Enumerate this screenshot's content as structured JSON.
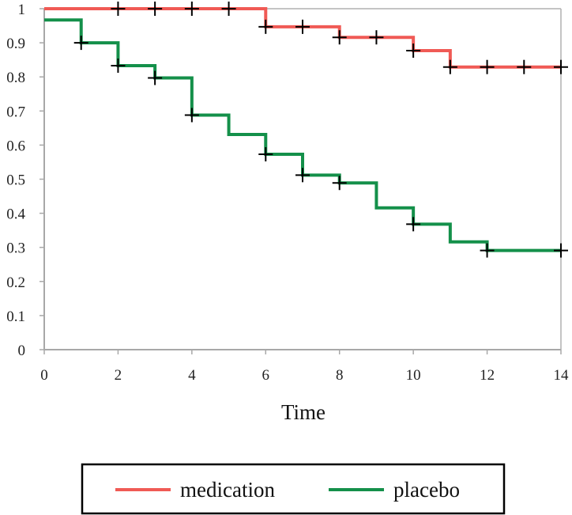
{
  "chart_data": {
    "type": "line",
    "title": "",
    "xlabel": "Time",
    "ylabel": "",
    "xlim": [
      0,
      14
    ],
    "ylim": [
      0,
      1
    ],
    "x_ticks": [
      0,
      2,
      4,
      6,
      8,
      10,
      12,
      14
    ],
    "x_tick_labels": [
      "0",
      "2",
      "4",
      "6",
      "8",
      "10",
      "12",
      "14"
    ],
    "y_ticks": [
      0,
      0.1,
      0.2,
      0.3,
      0.4,
      0.5,
      0.6,
      0.7,
      0.8,
      0.9,
      1
    ],
    "y_tick_labels": [
      "0",
      "0.1",
      "0.2",
      "0.3",
      "0.4",
      "0.5",
      "0.6",
      "0.7",
      "0.8",
      "0.9",
      "1"
    ],
    "legend_position": "bottom",
    "series": [
      {
        "name": "medication",
        "color": "#f05a55",
        "steps": [
          {
            "x": 0,
            "y": 1.0
          },
          {
            "x": 6,
            "y": 0.947
          },
          {
            "x": 8,
            "y": 0.916
          },
          {
            "x": 10,
            "y": 0.877
          },
          {
            "x": 11,
            "y": 0.829
          }
        ],
        "end_x": 14,
        "censored": [
          {
            "x": 2,
            "y": 1.0
          },
          {
            "x": 3,
            "y": 1.0
          },
          {
            "x": 4,
            "y": 1.0
          },
          {
            "x": 5,
            "y": 1.0
          },
          {
            "x": 6,
            "y": 0.947
          },
          {
            "x": 7,
            "y": 0.947
          },
          {
            "x": 8,
            "y": 0.916
          },
          {
            "x": 9,
            "y": 0.916
          },
          {
            "x": 10,
            "y": 0.877
          },
          {
            "x": 11,
            "y": 0.829
          },
          {
            "x": 12,
            "y": 0.829
          },
          {
            "x": 13,
            "y": 0.829
          },
          {
            "x": 14,
            "y": 0.829
          }
        ]
      },
      {
        "name": "placebo",
        "color": "#14904a",
        "steps": [
          {
            "x": 0,
            "y": 0.967
          },
          {
            "x": 1,
            "y": 0.9
          },
          {
            "x": 2,
            "y": 0.833
          },
          {
            "x": 3,
            "y": 0.797
          },
          {
            "x": 4,
            "y": 0.688
          },
          {
            "x": 5,
            "y": 0.631
          },
          {
            "x": 6,
            "y": 0.573
          },
          {
            "x": 7,
            "y": 0.512
          },
          {
            "x": 8,
            "y": 0.489
          },
          {
            "x": 9,
            "y": 0.416
          },
          {
            "x": 10,
            "y": 0.368
          },
          {
            "x": 11,
            "y": 0.316
          },
          {
            "x": 12,
            "y": 0.291
          }
        ],
        "end_x": 14,
        "censored": [
          {
            "x": 1,
            "y": 0.9
          },
          {
            "x": 2,
            "y": 0.833
          },
          {
            "x": 3,
            "y": 0.797
          },
          {
            "x": 4,
            "y": 0.688
          },
          {
            "x": 6,
            "y": 0.573
          },
          {
            "x": 7,
            "y": 0.512
          },
          {
            "x": 8,
            "y": 0.489
          },
          {
            "x": 10,
            "y": 0.368
          },
          {
            "x": 12,
            "y": 0.291
          },
          {
            "x": 14,
            "y": 0.291
          }
        ]
      }
    ]
  }
}
